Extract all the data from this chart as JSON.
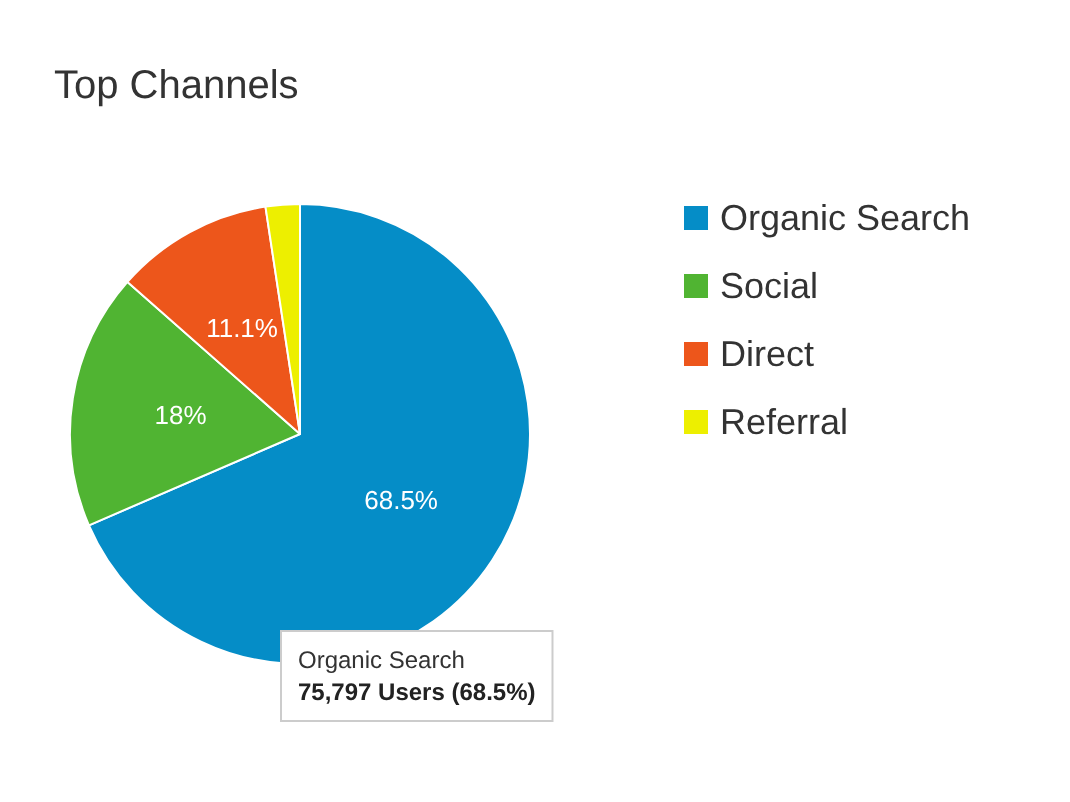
{
  "chart_data": {
    "type": "pie",
    "title": "Top Channels",
    "categories": [
      "Organic Search",
      "Social",
      "Direct",
      "Referral"
    ],
    "values": [
      68.5,
      18,
      11.1,
      2.4
    ],
    "colors": [
      "#058dc7",
      "#50b432",
      "#ed561b",
      "#edef00"
    ],
    "value_labels": [
      "68.5%",
      "18%",
      "11.1%",
      null
    ],
    "legend": "right",
    "annotations": [
      "Organic Search",
      "75,797 Users (68.5%)"
    ]
  }
}
